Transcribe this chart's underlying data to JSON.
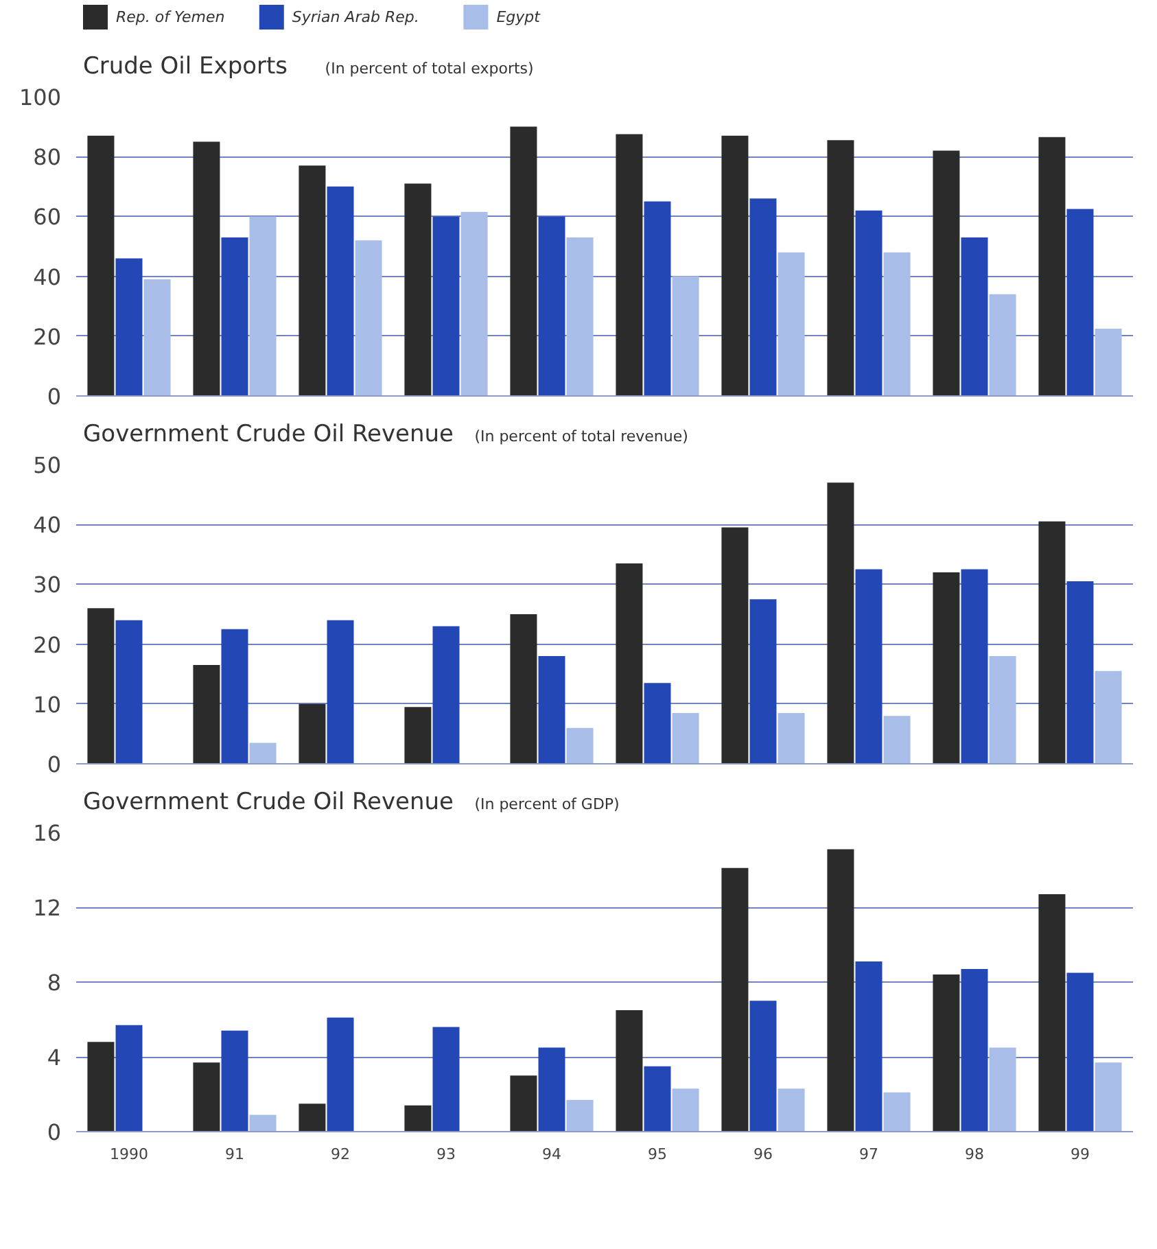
{
  "chart_data": [
    {
      "type": "bar",
      "title": "Crude Oil Exports",
      "subtitle": "(In percent of total exports)",
      "categories": [
        "1990",
        "91",
        "92",
        "93",
        "94",
        "95",
        "96",
        "97",
        "98",
        "99"
      ],
      "tick_labels": "y",
      "ylim": [
        0,
        100
      ],
      "yticks": [
        0,
        20,
        40,
        60,
        80,
        100
      ],
      "grid": "y",
      "legend": "top",
      "series": [
        {
          "name": "Rep. of Yemen",
          "color": "#2b2b2b",
          "values": [
            87,
            85,
            77,
            71,
            90,
            87.5,
            87,
            85.5,
            82,
            86.5
          ]
        },
        {
          "name": "Syrian Arab Rep.",
          "color": "#2347b5",
          "values": [
            46,
            53,
            70,
            60,
            60,
            65,
            66,
            62,
            53,
            62.5
          ]
        },
        {
          "name": "Egypt",
          "color": "#a8bde8",
          "values": [
            39,
            60,
            52,
            61.5,
            53,
            40,
            48,
            48,
            34,
            22.5
          ]
        }
      ]
    },
    {
      "type": "bar",
      "title": "Government Crude Oil Revenue",
      "subtitle": "(In percent of total revenue)",
      "categories": [
        "1990",
        "91",
        "92",
        "93",
        "94",
        "95",
        "96",
        "97",
        "98",
        "99"
      ],
      "tick_labels": "y",
      "ylim": [
        0,
        50
      ],
      "yticks": [
        0,
        10,
        20,
        30,
        40,
        50
      ],
      "grid": "y",
      "series": [
        {
          "color": "#2b2b2b",
          "values": [
            26,
            16.5,
            10,
            9.5,
            25,
            33.5,
            39.5,
            47,
            32,
            40.5
          ]
        },
        {
          "color": "#2347b5",
          "values": [
            24,
            22.5,
            24,
            23,
            18,
            13.5,
            27.5,
            32.5,
            32.5,
            30.5
          ]
        },
        {
          "color": "#a8bde8",
          "values": [
            null,
            3.5,
            null,
            null,
            6,
            8.5,
            8.5,
            8,
            18,
            15.5
          ]
        }
      ]
    },
    {
      "type": "bar",
      "title": "Government Crude Oil Revenue",
      "subtitle": "(In percent of GDP)",
      "categories": [
        "1990",
        "91",
        "92",
        "93",
        "94",
        "95",
        "96",
        "97",
        "98",
        "99"
      ],
      "ylim": [
        0,
        16
      ],
      "yticks": [
        0,
        4,
        8,
        12,
        16
      ],
      "grid": "y",
      "series": [
        {
          "color": "#2b2b2b",
          "values": [
            4.8,
            3.7,
            1.5,
            1.4,
            3.0,
            6.5,
            14.1,
            15.1,
            8.4,
            12.7
          ]
        },
        {
          "color": "#2347b5",
          "values": [
            5.7,
            5.4,
            6.1,
            5.6,
            4.5,
            3.5,
            7.0,
            9.1,
            8.7,
            8.5
          ]
        },
        {
          "color": "#a8bde8",
          "values": [
            null,
            0.9,
            null,
            null,
            1.7,
            2.3,
            2.3,
            2.1,
            4.5,
            3.7
          ]
        }
      ]
    }
  ]
}
